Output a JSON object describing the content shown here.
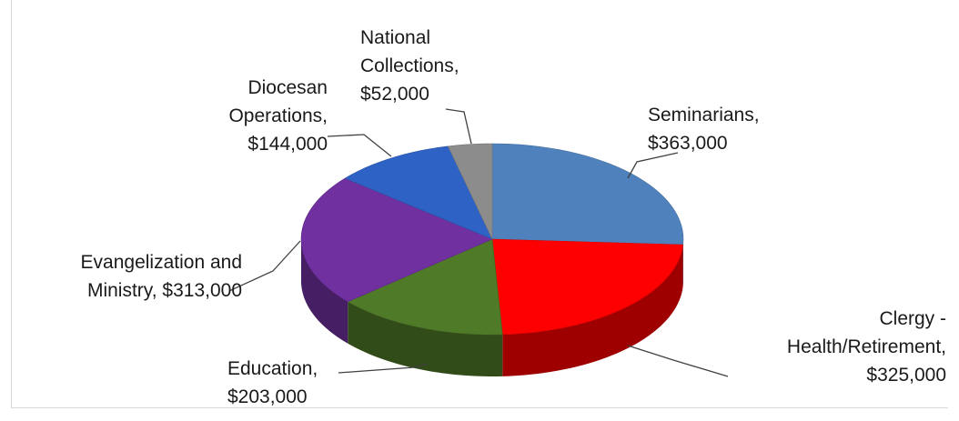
{
  "chart_data": {
    "type": "pie",
    "style": "3d",
    "title": "",
    "slices": [
      {
        "label_lines": [
          "Seminarians,",
          "$363,000"
        ],
        "category": "Seminarians",
        "value": 363000,
        "color": "#4f81bd"
      },
      {
        "label_lines": [
          "Clergy -",
          "Health/Retirement,",
          "$325,000"
        ],
        "category": "Clergy - Health/Retirement",
        "value": 325000,
        "color": "#ff0000"
      },
      {
        "label_lines": [
          "Education,",
          "$203,000"
        ],
        "category": "Education",
        "value": 203000,
        "color": "#4f7a28"
      },
      {
        "label_lines": [
          "Evangelization and",
          "Ministry, $313,000"
        ],
        "category": "Evangelization and Ministry",
        "value": 313000,
        "color": "#7030a0"
      },
      {
        "label_lines": [
          "Diocesan",
          "Operations,",
          "$144,000"
        ],
        "category": "Diocesan Operations",
        "value": 144000,
        "color": "#2e62c4"
      },
      {
        "label_lines": [
          "National",
          "Collections,",
          "$52,000"
        ],
        "category": "National Collections",
        "value": 52000,
        "color": "#8c8c8c"
      }
    ]
  }
}
